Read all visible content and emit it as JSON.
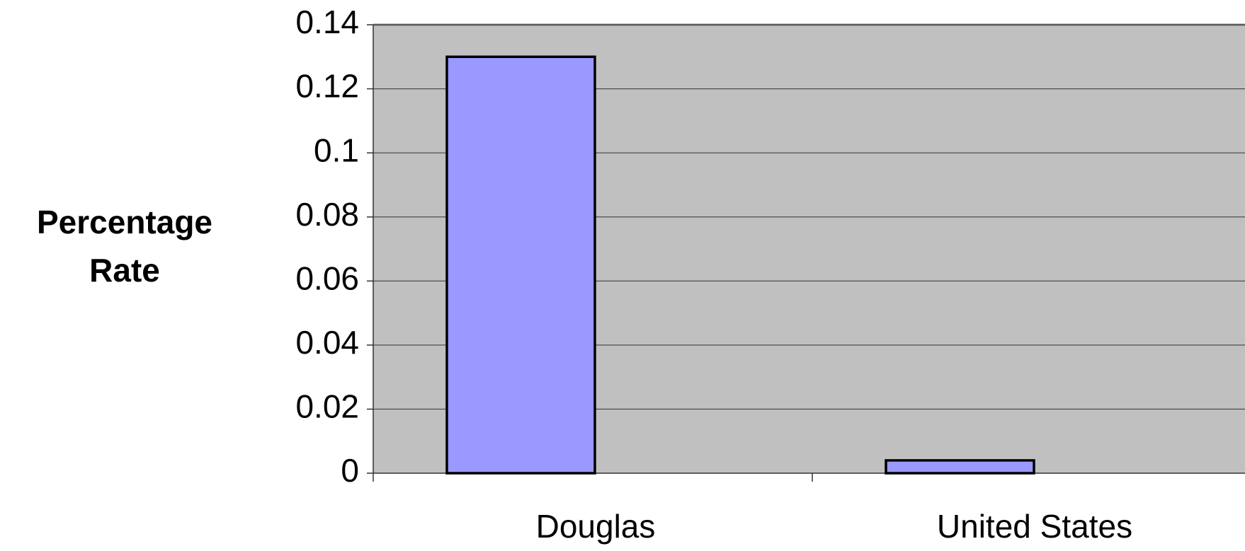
{
  "chart_data": {
    "type": "bar",
    "ylabel": "Percentage Rate",
    "categories": [
      "Douglas",
      "United States"
    ],
    "values": [
      0.13,
      0.004
    ],
    "color": "#9999ff",
    "ylim": [
      0,
      0.14
    ],
    "yticks": [
      0,
      0.02,
      0.04,
      0.06,
      0.08,
      0.1,
      0.12,
      0.14
    ],
    "grid": true
  }
}
